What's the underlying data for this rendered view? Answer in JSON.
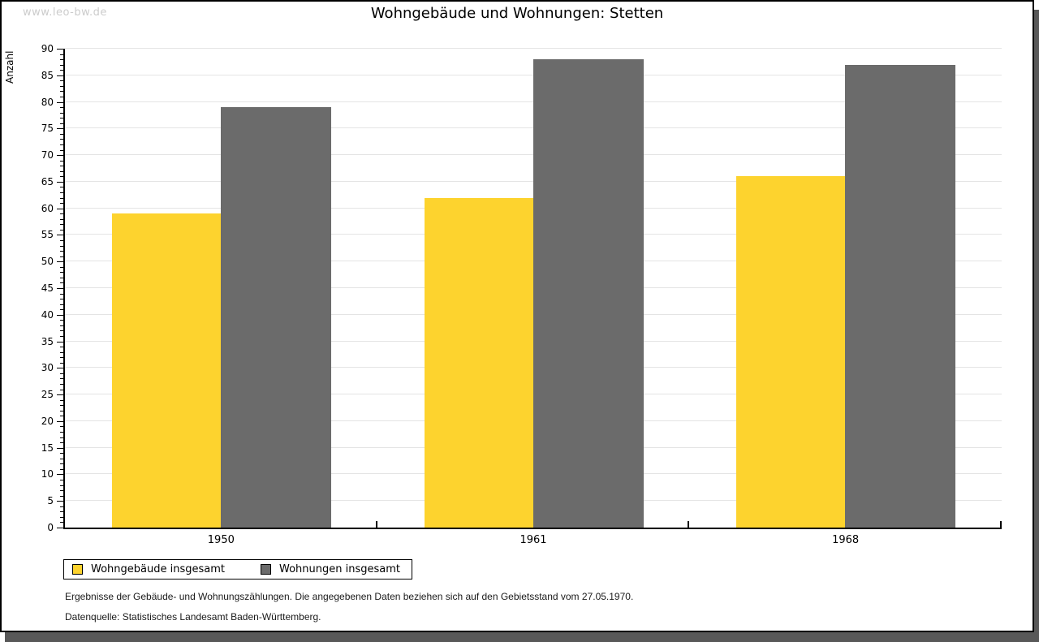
{
  "watermark": "www.leo-bw.de",
  "title": "Wohngebäude und Wohnungen: Stetten",
  "chart_data": {
    "type": "bar",
    "title": "Wohngebäude und Wohnungen: Stetten",
    "categories": [
      "1950",
      "1961",
      "1968"
    ],
    "series": [
      {
        "name": "Wohngebäude insgesamt",
        "color": "#FDD32E",
        "values": [
          59,
          62,
          66
        ]
      },
      {
        "name": "Wohnungen insgesamt",
        "color": "#6B6B6B",
        "values": [
          79,
          88,
          87
        ]
      }
    ],
    "xlabel": "",
    "ylabel": "Anzahl",
    "ylim": [
      0,
      90
    ],
    "ytick_major_step": 5,
    "ytick_minor_step": 1,
    "grid": true,
    "gridline_color": "#e4e4e4",
    "legend_position": "bottom-left"
  },
  "footnotes": {
    "line1": "Ergebnisse der Gebäude- und Wohnungszählungen. Die angegebenen Daten beziehen sich auf den Gebietsstand vom 27.05.1970.",
    "line2": "Datenquelle: Statistisches Landesamt Baden-Württemberg."
  }
}
